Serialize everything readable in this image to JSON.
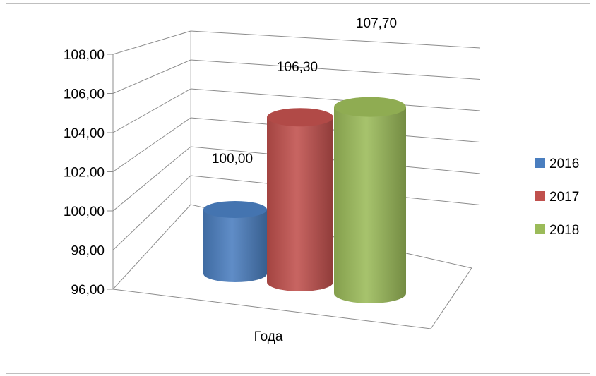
{
  "chart_data": {
    "type": "bar",
    "style": "3d-cylinder",
    "xlabel": "Года",
    "categories": [
      "Года"
    ],
    "series": [
      {
        "name": "2016",
        "value": 100.0,
        "label": "100,00",
        "color": "#4a7ebf"
      },
      {
        "name": "2017",
        "value": 106.3,
        "label": "106,30",
        "color": "#c0504d"
      },
      {
        "name": "2018",
        "value": 107.7,
        "label": "107,70",
        "color": "#9bbb59"
      }
    ],
    "ylim": [
      96,
      108
    ],
    "yticks": [
      "96,00",
      "98,00",
      "100,00",
      "102,00",
      "104,00",
      "106,00",
      "108,00"
    ],
    "grid": true,
    "legend_position": "right"
  }
}
